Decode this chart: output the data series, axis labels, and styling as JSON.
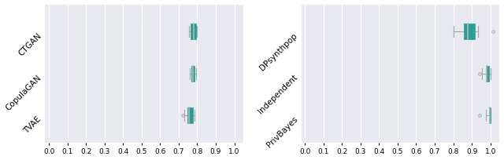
{
  "left_labels": [
    "CTGAN",
    "CopulaGAN",
    "TVAE"
  ],
  "right_labels": [
    "DPsynthpop",
    "Independent",
    "PrivBayes"
  ],
  "left_boxes": [
    {
      "whislo": 0.757,
      "q1": 0.766,
      "med": 0.782,
      "q3": 0.793,
      "whishi": 0.8,
      "fliers": []
    },
    {
      "whislo": 0.76,
      "q1": 0.77,
      "med": 0.778,
      "q3": 0.785,
      "whishi": 0.792,
      "fliers": []
    },
    {
      "whislo": 0.73,
      "q1": 0.748,
      "med": 0.757,
      "q3": 0.775,
      "whishi": 0.785,
      "fliers": [
        0.72
      ]
    }
  ],
  "right_boxes": [
    {
      "whislo": 0.8,
      "q1": 0.855,
      "med": 0.88,
      "q3": 0.918,
      "whishi": 0.935,
      "fliers": [
        1.015
      ]
    },
    {
      "whislo": 0.955,
      "q1": 0.975,
      "med": 0.982,
      "q3": 0.993,
      "whishi": 1.0,
      "fliers": [
        0.94
      ]
    },
    {
      "whislo": 0.978,
      "q1": 0.992,
      "med": 0.997,
      "q3": 1.0,
      "whishi": 1.0,
      "fliers": [
        0.94
      ]
    }
  ],
  "box_color": "#2a9d96",
  "median_color": "#b0b8b8",
  "whisker_color": "#a0a8a8",
  "cap_color": "#a0a8a8",
  "flier_color": "#a0a8a8",
  "bg_color": "#e8eaf0",
  "xlim": [
    -0.02,
    1.05
  ],
  "xticks": [
    0.0,
    0.1,
    0.2,
    0.3,
    0.4,
    0.5,
    0.6,
    0.7,
    0.8,
    0.9,
    1.0
  ],
  "label_fontsize": 7.5,
  "tick_fontsize": 6.5
}
